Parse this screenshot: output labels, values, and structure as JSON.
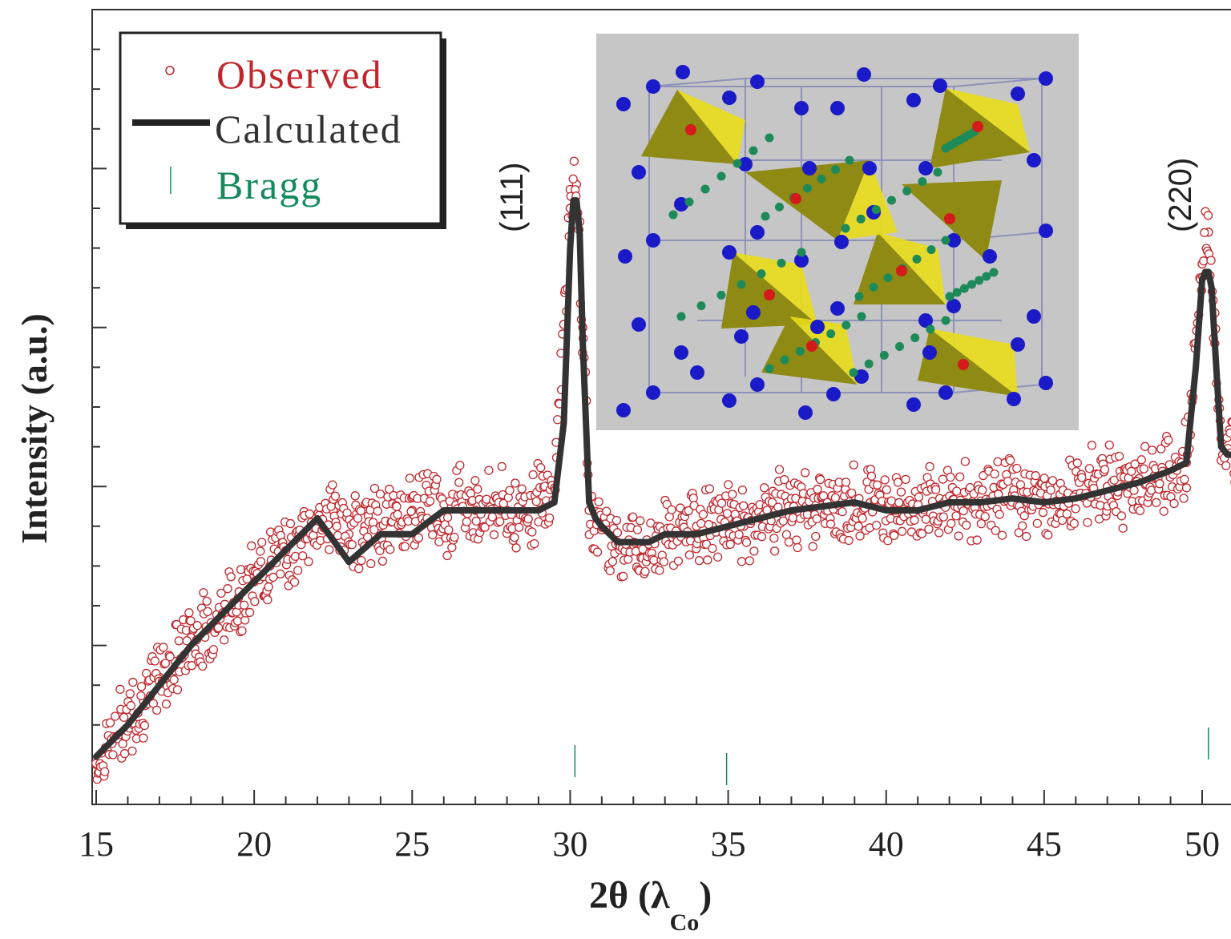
{
  "chart_data": {
    "type": "scatter",
    "xlabel_main": "2θ (λ",
    "xlabel_sub": "Co",
    "xlabel_close": ")",
    "ylabel": "Intensity (a.u.)",
    "xlim": [
      15,
      53
    ],
    "ylim": [
      0,
      100
    ],
    "x_ticks": [
      "15",
      "20",
      "25",
      "30",
      "35",
      "40",
      "45",
      "50"
    ],
    "y_tick_labels_shown": false,
    "legend": {
      "position": "top-left",
      "entries": [
        {
          "label": "Observed",
          "color": "#c0272d",
          "marker": "open-circle"
        },
        {
          "label": "Calculated",
          "color": "#333333",
          "marker": "thick-line"
        },
        {
          "label": "Bragg",
          "color": "#138a5a",
          "marker": "vertical-tick"
        }
      ]
    },
    "annotations": [
      {
        "text": "(111)",
        "x": 29.3,
        "y": 77
      },
      {
        "text": "(220)",
        "x": 51.5,
        "y": 73
      }
    ],
    "series": [
      {
        "name": "Calculated",
        "color": "#333333",
        "x": [
          15.0,
          16.0,
          17.0,
          18.0,
          19.0,
          20.0,
          21.0,
          22.0,
          23.0,
          24.0,
          25.0,
          26.0,
          27.0,
          28.0,
          29.0,
          29.5,
          29.8,
          30.0,
          30.1,
          30.2,
          30.3,
          30.4,
          30.6,
          30.8,
          31.0,
          31.5,
          32.0,
          32.5,
          33.0,
          34.0,
          35.0,
          36.0,
          37.0,
          38.0,
          39.0,
          40.0,
          41.0,
          42.0,
          43.0,
          44.0,
          45.0,
          46.0,
          47.0,
          48.0,
          49.0,
          49.5,
          49.8,
          50.0,
          50.1,
          50.2,
          50.3,
          50.4,
          50.6,
          50.8,
          51.0,
          51.5,
          52.0,
          53.0
        ],
        "y": [
          6,
          10,
          15,
          20,
          24,
          28,
          32,
          36,
          30.5,
          34,
          34,
          37,
          37,
          37,
          37,
          38,
          48,
          70,
          76,
          76,
          72,
          58,
          38,
          36,
          35,
          33,
          33,
          33,
          34,
          34,
          35,
          36,
          37,
          37.5,
          38,
          37,
          37,
          38,
          38,
          38.5,
          38,
          38.5,
          39.5,
          40.5,
          42,
          43,
          55,
          66,
          67,
          67,
          65,
          58,
          45,
          44,
          44,
          43,
          43,
          42.5
        ]
      },
      {
        "name": "Observed",
        "color": "#c0272d",
        "x": [
          15.0,
          15.5,
          16.0,
          16.5,
          17.0,
          17.5,
          18.0,
          18.5,
          19.0,
          19.5,
          20.0,
          20.5,
          21.0,
          21.5,
          22.0,
          22.5,
          23.0,
          23.5,
          24.0,
          24.5,
          25.0,
          25.5,
          26.0,
          26.5,
          27.0,
          27.5,
          28.0,
          28.5,
          29.0,
          29.5,
          30.0,
          30.2,
          30.4,
          30.6,
          31.0,
          31.5,
          32.0,
          32.5,
          33.0,
          33.5,
          34.0,
          34.5,
          35.0,
          35.5,
          36.0,
          36.5,
          37.0,
          37.5,
          38.0,
          38.5,
          39.0,
          39.5,
          40.0,
          40.5,
          41.0,
          41.5,
          42.0,
          42.5,
          43.0,
          43.5,
          44.0,
          44.5,
          45.0,
          45.5,
          46.0,
          46.5,
          47.0,
          47.5,
          48.0,
          48.5,
          49.0,
          49.5,
          50.0,
          50.2,
          50.4,
          50.6,
          51.0,
          51.5,
          52.0,
          52.5,
          53.0
        ],
        "y": [
          5,
          8,
          11,
          13,
          16,
          18,
          21,
          22,
          24,
          26,
          28,
          30,
          32,
          33,
          35,
          37,
          34,
          35,
          35,
          36,
          37,
          38,
          36,
          38,
          37,
          38,
          37,
          37,
          38,
          40,
          75,
          78,
          60,
          37,
          35,
          33,
          33,
          33,
          34,
          34,
          35,
          35,
          36,
          35,
          36,
          37,
          37,
          37,
          38,
          37,
          38,
          38,
          38,
          37,
          37,
          38,
          38,
          38,
          38,
          39,
          39,
          39,
          38,
          39,
          39,
          40,
          40,
          40,
          41,
          41,
          42,
          43,
          68,
          72,
          58,
          46,
          44,
          43,
          44,
          42,
          42
        ]
      }
    ],
    "bragg_positions": [
      30.15,
      34.95,
      50.2
    ],
    "inset_image": "cubic crystal structure with yellow tetrahedra, blue, red and green atoms"
  }
}
